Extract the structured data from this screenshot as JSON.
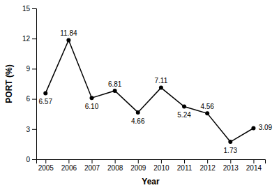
{
  "chart_data": {
    "type": "line",
    "x": [
      2005,
      2006,
      2007,
      2008,
      2009,
      2010,
      2011,
      2012,
      2013,
      2014
    ],
    "values": [
      6.57,
      11.84,
      6.1,
      6.81,
      4.66,
      7.11,
      5.24,
      4.56,
      1.73,
      3.09
    ],
    "value_labels": [
      "6.57",
      "11.84",
      "6.10",
      "6.81",
      "4.66",
      "7.11",
      "5.24",
      "4.56",
      "1.73",
      "3.09"
    ],
    "data_labels": true,
    "xlabel": "Year",
    "ylabel": "PORT (%)",
    "xlim": [
      2004.6,
      2014.5
    ],
    "xticks": [
      2005,
      2006,
      2007,
      2008,
      2009,
      2010,
      2011,
      2012,
      2013,
      2014
    ],
    "ylim": [
      0,
      15
    ],
    "yticks": [
      0,
      3,
      6,
      9,
      12,
      15
    ],
    "color": "#000000",
    "marker": "circle"
  }
}
